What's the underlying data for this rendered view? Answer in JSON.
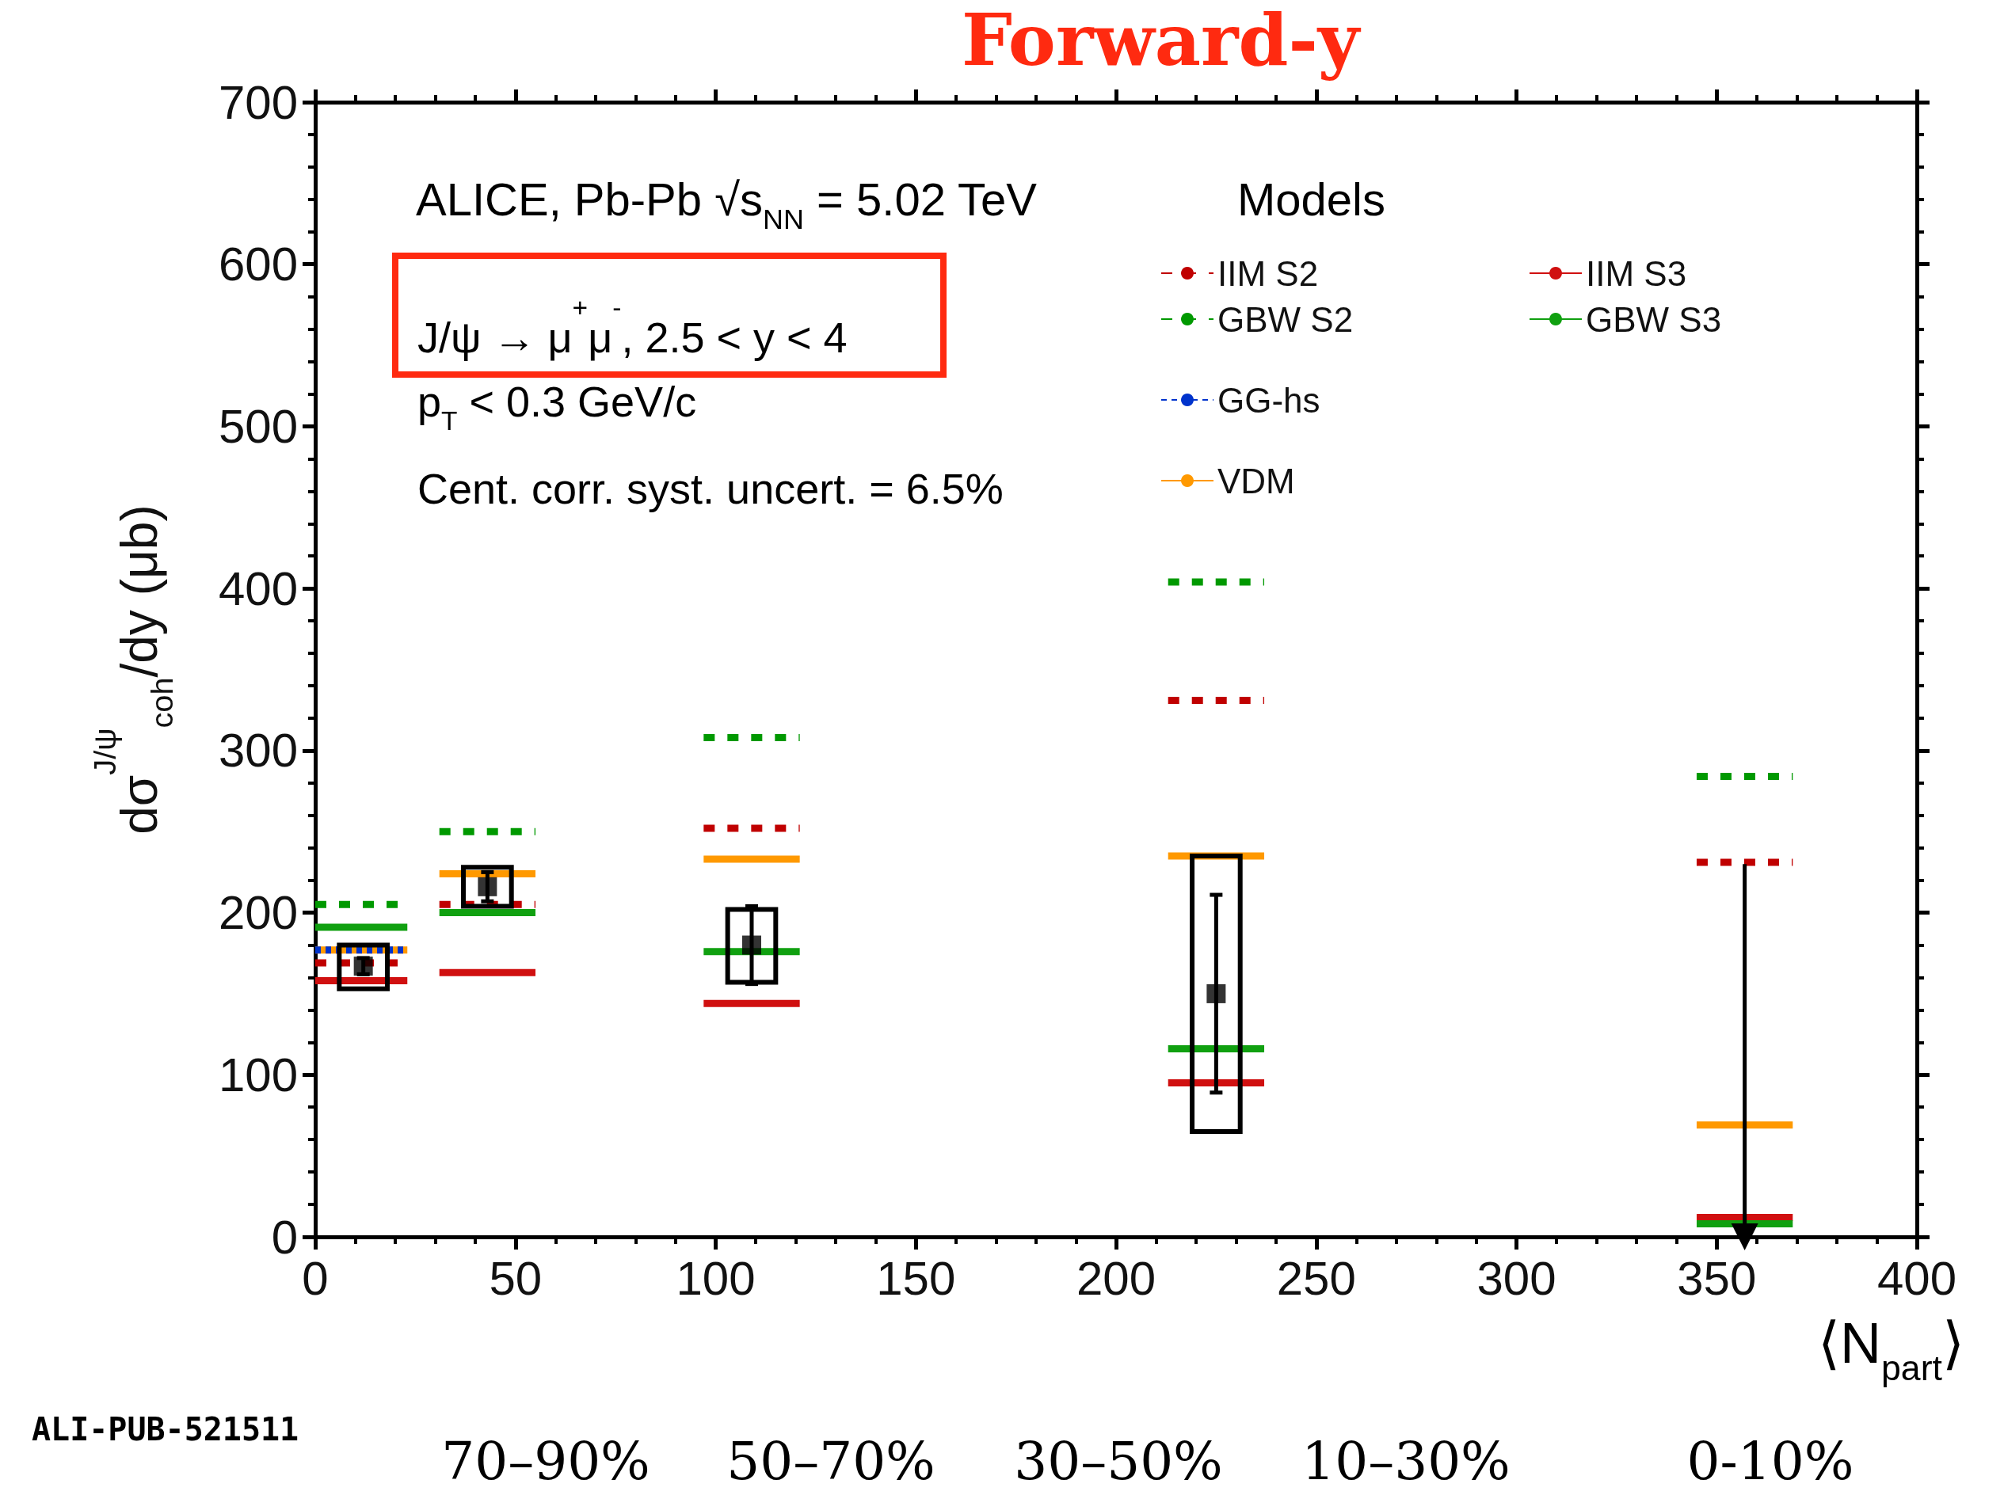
{
  "chart_data": {
    "type": "line",
    "title": "Forward-y",
    "xlabel": "⟨N$_{part}$⟩",
    "ylabel": "dσ$^{J/ψ}$$_{coh}$/dy (μb)",
    "legend_title": "Models",
    "legend": "top right",
    "grid": false,
    "xlim": [
      0,
      400
    ],
    "xticks": [
      0,
      50,
      100,
      150,
      200,
      250,
      300,
      350,
      400
    ],
    "ylim": [
      0,
      700
    ],
    "yticks": [
      0,
      100,
      200,
      300,
      400,
      500,
      600,
      700
    ],
    "annotations": [
      "ALICE, Pb-Pb √s$_{NN}$ = 5.02 TeV",
      "J/ψ → μ$^{+}$μ$^{-}$, 2.5 < y < 4",
      "p$_{T}$ < 0.3 GeV/c",
      "Cent. corr. syst. uncert. = 6.5%",
      "70–90%",
      "50–70%",
      "30–50%",
      "10–30%",
      "0-10%",
      "ALI-PUB-521511"
    ],
    "series": [
      {
        "name": "IIM S2",
        "color": "#c00000",
        "line_style": "dashed",
        "marker": "none",
        "x": [
          0,
          23,
          null,
          31,
          55,
          null,
          97,
          121,
          null,
          213,
          237,
          null,
          345,
          369
        ],
        "values": [
          169,
          169,
          null,
          205,
          205,
          null,
          252,
          252,
          null,
          331,
          331,
          null,
          231,
          231
        ]
      },
      {
        "name": "GBW S2",
        "color": "#009900",
        "line_style": "dashed",
        "marker": "none",
        "x": [
          0,
          23,
          null,
          31,
          55,
          null,
          97,
          121,
          null,
          213,
          237,
          null,
          345,
          369
        ],
        "values": [
          205,
          205,
          null,
          250,
          250,
          null,
          308,
          308,
          null,
          404,
          404,
          null,
          284,
          284
        ]
      },
      {
        "name": "IIM S3",
        "color": "#d01010",
        "line_style": "solid",
        "marker": "none",
        "x": [
          0,
          23,
          null,
          31,
          55,
          null,
          97,
          121,
          null,
          213,
          237,
          null,
          345,
          369
        ],
        "values": [
          158,
          158,
          null,
          163,
          163,
          null,
          144,
          144,
          null,
          95,
          95,
          null,
          12,
          12
        ]
      },
      {
        "name": "GBW S3",
        "color": "#10a010",
        "line_style": "solid",
        "marker": "none",
        "x": [
          0,
          23,
          null,
          31,
          55,
          null,
          97,
          121,
          null,
          213,
          237,
          null,
          345,
          369
        ],
        "values": [
          191,
          191,
          null,
          200,
          200,
          null,
          176,
          176,
          null,
          116,
          116,
          null,
          8,
          8
        ]
      },
      {
        "name": "GG-hs",
        "color": "#0033cc",
        "line_style": "dotted",
        "marker": "none",
        "x": [
          0,
          23
        ],
        "values": [
          177,
          177
        ]
      },
      {
        "name": "VDM",
        "color": "#ff9900",
        "line_style": "solid",
        "marker": "none",
        "x": [
          0,
          23,
          null,
          31,
          55,
          null,
          97,
          121,
          null,
          213,
          237,
          null,
          345,
          369
        ],
        "values": [
          177,
          177,
          null,
          224,
          224,
          null,
          233,
          233,
          null,
          235,
          235,
          null,
          69,
          69
        ]
      },
      {
        "type": "bar",
        "color": "#000000",
        "x": [
          12,
          43,
          109,
          225
        ],
        "base": [
          153,
          204,
          157,
          65
        ],
        "values": [
          27,
          24,
          45,
          170
        ]
      },
      {
        "type": "scatter",
        "color": "#000000",
        "marker": "square",
        "x": [
          12,
          43,
          109,
          225
        ],
        "values": [
          167,
          216,
          180,
          150
        ],
        "errors": [
          5,
          9,
          24,
          61
        ]
      },
      {
        "type": "line",
        "color": "#000000",
        "line_style": "solid",
        "marker": "triangle",
        "x": [
          357,
          357
        ],
        "values": [
          230,
          0
        ]
      }
    ]
  }
}
